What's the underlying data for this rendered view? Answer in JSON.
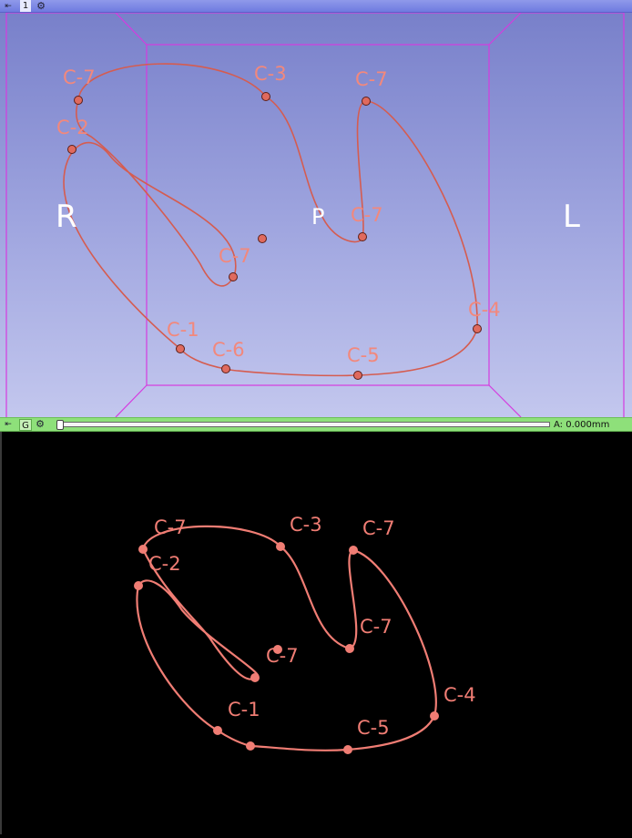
{
  "top_bar": {
    "pin_glyph": "⇤",
    "view_number": "1",
    "settings_glyph": "⚙"
  },
  "view3d": {
    "orientation": {
      "left": "R",
      "center": "P",
      "right": "L"
    },
    "box_color": "#d53be0",
    "curve_color": "#e8675c",
    "label_color": "#f2887c",
    "labels": [
      "C-7",
      "C-3",
      "C-7",
      "C-2",
      "C-7",
      "C-7",
      "C-1",
      "C-6",
      "C-5",
      "C-4"
    ]
  },
  "mid_bar": {
    "pin_glyph": "⇤",
    "link_label": "G",
    "settings_glyph": "⚙",
    "offset_text": "A: 0.000mm",
    "slider_position": 0.0
  },
  "view2d": {
    "curve_color": "#f07d74",
    "labels": [
      "C-7",
      "C-3",
      "C-7",
      "C-2",
      "C-7",
      "C-7",
      "C-1",
      "C-5",
      "C-4"
    ]
  }
}
